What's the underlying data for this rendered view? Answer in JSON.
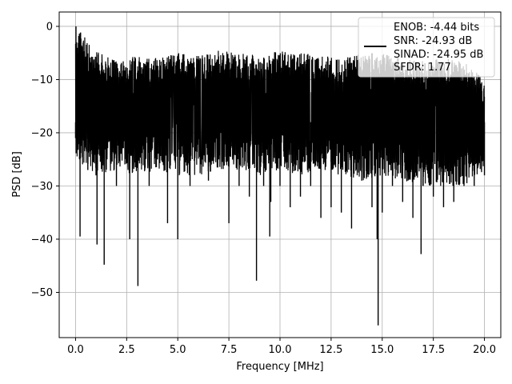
{
  "chart_data": {
    "type": "line",
    "title": "",
    "xlabel": "Frequency [MHz]",
    "ylabel": "PSD [dB]",
    "xlim": [
      -0.8,
      20.8
    ],
    "ylim": [
      -58.5,
      2.7
    ],
    "xticks": [
      0.0,
      2.5,
      5.0,
      7.5,
      10.0,
      12.5,
      15.0,
      17.5,
      20.0
    ],
    "xtick_labels": [
      "0.0",
      "2.5",
      "5.0",
      "7.5",
      "10.0",
      "12.5",
      "15.0",
      "17.5",
      "20.0"
    ],
    "yticks": [
      0,
      -10,
      -20,
      -30,
      -40,
      -50
    ],
    "ytick_labels": [
      "0",
      "−10",
      "−20",
      "−30",
      "−40",
      "−50"
    ],
    "grid": true,
    "legend_position": "top-right",
    "series_color": "#000000",
    "series": [
      {
        "name": "",
        "x": [
          0.0,
          0.02,
          0.05,
          0.1,
          0.2,
          0.22,
          0.3,
          0.6,
          1.0,
          1.05,
          1.35,
          1.4,
          2.0,
          2.6,
          2.65,
          3.0,
          3.05,
          3.6,
          4.0,
          4.5,
          4.6,
          5.0,
          5.55,
          5.6,
          6.5,
          7.0,
          7.5,
          8.0,
          8.5,
          8.85,
          8.9,
          9.2,
          9.5,
          9.55,
          10.0,
          10.5,
          11.0,
          11.5,
          12.0,
          12.5,
          13.0,
          13.5,
          14.0,
          14.5,
          14.7,
          14.75,
          14.8,
          15.0,
          15.5,
          16.0,
          16.5,
          16.9,
          17.0,
          17.5,
          18.0,
          18.5,
          19.0,
          19.5,
          20.0
        ],
        "y": [
          -21,
          0,
          -3,
          -12,
          -25,
          -39.5,
          -18,
          -27,
          -28,
          -41,
          -22,
          -44.8,
          -30,
          -22,
          -40,
          -25,
          -48.8,
          -30,
          -25,
          -37,
          -20,
          -40,
          -25,
          -30,
          -29,
          -25,
          -37,
          -30,
          -32,
          -47.8,
          -24,
          -30,
          -39.5,
          -33,
          -30,
          -34,
          -32,
          -30,
          -36,
          -34,
          -35,
          -38,
          -29,
          -34,
          -25,
          -40,
          -56.2,
          -35,
          -30,
          -33,
          -36,
          -42.8,
          -30,
          -32,
          -34,
          -33,
          -30,
          -30,
          -28
        ],
        "envelope": {
          "x": [
            0,
            1,
            2,
            3,
            4,
            5,
            6,
            7,
            8,
            9,
            10,
            11,
            12,
            13,
            14,
            15,
            16,
            17,
            18,
            19,
            20
          ],
          "upper": [
            0,
            -4.5,
            -6.5,
            -5.5,
            -6,
            -5,
            -5.5,
            -4.5,
            -5,
            -5.5,
            -4.5,
            -5,
            -5.5,
            -6,
            -5,
            -5,
            -6,
            -6.5,
            -6,
            -6.5,
            -10
          ],
          "lower": [
            -25,
            -28,
            -27,
            -28,
            -27,
            -28,
            -28,
            -27,
            -27,
            -28,
            -27,
            -28,
            -27,
            -28,
            -29,
            -28,
            -29,
            -30,
            -30,
            -30,
            -27
          ]
        }
      }
    ],
    "legend_lines": [
      "ENOB: -4.44 bits",
      "SNR: -24.93 dB",
      "SINAD: -24.95 dB",
      "SFDR: 1.77"
    ]
  }
}
